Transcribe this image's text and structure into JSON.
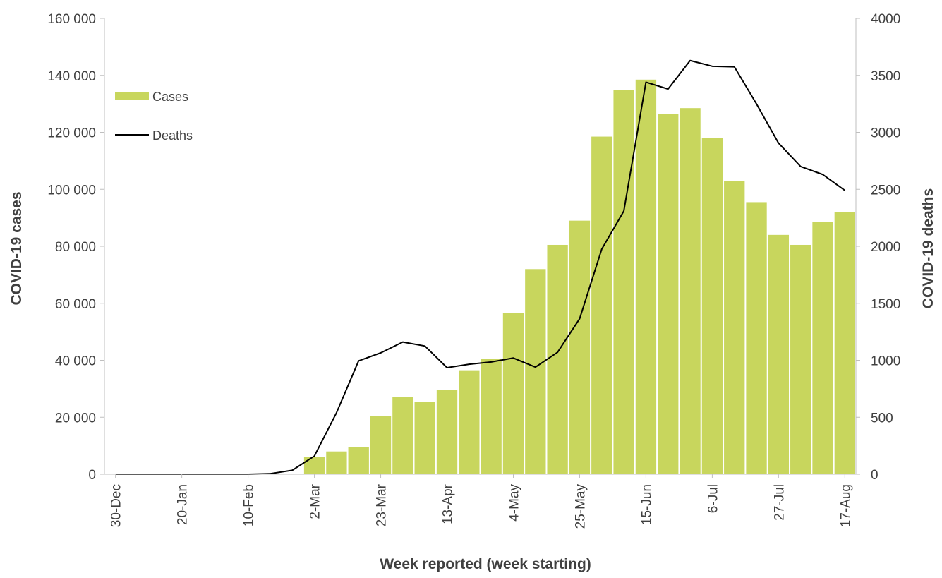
{
  "chart_data": {
    "type": "bar",
    "title": "",
    "xlabel": "Week reported (week starting)",
    "ylabel": "COVID-19 cases",
    "y2label": "COVID-19 deaths",
    "ylim": [
      0,
      160000
    ],
    "y2lim": [
      0,
      4000
    ],
    "y_ticks": [
      "0",
      "20 000",
      "40 000",
      "60 000",
      "80 000",
      "100 000",
      "120 000",
      "140 000",
      "160 000"
    ],
    "y2_ticks": [
      "0",
      "500",
      "1000",
      "1500",
      "2000",
      "2500",
      "3000",
      "3500",
      "4000"
    ],
    "x_tick_labels": [
      "30-Dec",
      "20-Jan",
      "10-Feb",
      "2-Mar",
      "23-Mar",
      "13-Apr",
      "4-May",
      "25-May",
      "15-Jun",
      "6-Jul",
      "27-Jul",
      "17-Aug"
    ],
    "categories": [
      "30-Dec",
      "6-Jan",
      "13-Jan",
      "20-Jan",
      "27-Jan",
      "3-Feb",
      "10-Feb",
      "17-Feb",
      "24-Feb",
      "2-Mar",
      "9-Mar",
      "16-Mar",
      "23-Mar",
      "30-Mar",
      "6-Apr",
      "13-Apr",
      "20-Apr",
      "27-Apr",
      "4-May",
      "11-May",
      "18-May",
      "25-May",
      "1-Jun",
      "8-Jun",
      "15-Jun",
      "22-Jun",
      "29-Jun",
      "6-Jul",
      "13-Jul",
      "20-Jul",
      "27-Jul",
      "3-Aug",
      "10-Aug",
      "17-Aug"
    ],
    "legend_position": "top-left",
    "grid": false,
    "series": [
      {
        "name": "Cases",
        "type": "bar",
        "axis": "left",
        "color": "#c8d65d",
        "values": [
          0,
          0,
          0,
          0,
          0,
          0,
          0,
          0,
          0,
          6000,
          8000,
          9500,
          20500,
          27000,
          25500,
          29500,
          36500,
          40500,
          56500,
          72000,
          80500,
          89000,
          118500,
          134800,
          138500,
          126500,
          128500,
          118000,
          103000,
          95500,
          84000,
          80500,
          88500,
          92000
        ]
      },
      {
        "name": "Deaths",
        "type": "line",
        "axis": "right",
        "color": "#000000",
        "values": [
          0,
          0,
          0,
          0,
          0,
          0,
          0,
          5,
          35,
          160,
          540,
          995,
          1065,
          1160,
          1125,
          935,
          965,
          985,
          1020,
          940,
          1070,
          1365,
          1975,
          2310,
          3440,
          3380,
          3630,
          3580,
          3575,
          3250,
          2905,
          2700,
          2630,
          2490
        ]
      }
    ]
  }
}
